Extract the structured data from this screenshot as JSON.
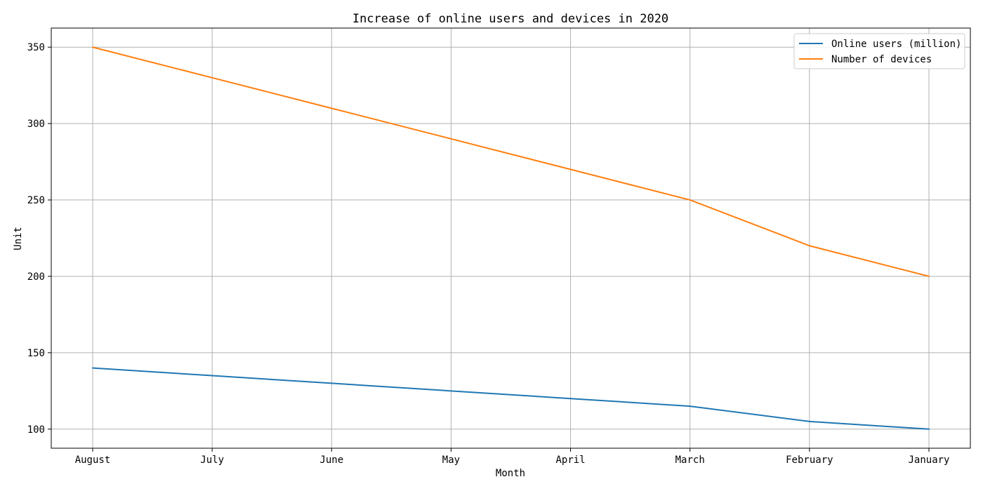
{
  "chart_data": {
    "type": "line",
    "title": "Increase of online users and devices in 2020",
    "xlabel": "Month",
    "ylabel": "Unit",
    "categories": [
      "August",
      "July",
      "June",
      "May",
      "April",
      "March",
      "February",
      "January"
    ],
    "series": [
      {
        "name": "Online users (million)",
        "color": "#1f77b4",
        "values": [
          140,
          135,
          130,
          125,
          120,
          115,
          105,
          100
        ]
      },
      {
        "name": "Number of devices",
        "color": "#ff7f0e",
        "values": [
          350,
          330,
          310,
          290,
          270,
          250,
          220,
          200
        ]
      }
    ],
    "yticks": [
      100,
      150,
      200,
      250,
      300,
      350
    ],
    "ylim": [
      87.5,
      362.5
    ],
    "grid": true,
    "legend_position": "top-right"
  }
}
